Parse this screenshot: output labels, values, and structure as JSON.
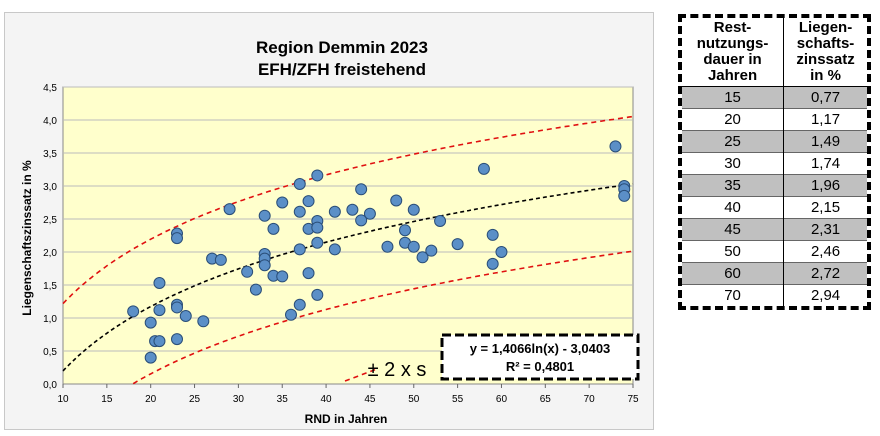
{
  "chart_data": {
    "type": "scatter",
    "title": "Region Demmin 2023",
    "subtitle": "EFH/ZFH freistehend",
    "xlabel": "RND in Jahren",
    "ylabel": "Liegenschaftszinssatz in %",
    "xlim": [
      10,
      75
    ],
    "ylim": [
      0,
      4.5
    ],
    "xticks": [
      10,
      15,
      20,
      25,
      30,
      35,
      40,
      45,
      50,
      55,
      60,
      65,
      70,
      75
    ],
    "yticks": [
      "0,0",
      "0,5",
      "1,0",
      "1,5",
      "2,0",
      "2,5",
      "3,0",
      "3,5",
      "4,0",
      "4,5"
    ],
    "xtick_values": [
      10,
      15,
      20,
      25,
      30,
      35,
      40,
      45,
      50,
      55,
      60,
      65,
      70,
      75
    ],
    "ytick_values": [
      0,
      0.5,
      1.0,
      1.5,
      2.0,
      2.5,
      3.0,
      3.5,
      4.0,
      4.5
    ],
    "grid": true,
    "points": [
      [
        18,
        1.1
      ],
      [
        20,
        0.93
      ],
      [
        20,
        0.4
      ],
      [
        20.5,
        0.65
      ],
      [
        21,
        1.53
      ],
      [
        21,
        1.12
      ],
      [
        21,
        0.65
      ],
      [
        23,
        2.28
      ],
      [
        23,
        2.21
      ],
      [
        23,
        1.2
      ],
      [
        23,
        1.16
      ],
      [
        23,
        0.68
      ],
      [
        24,
        1.03
      ],
      [
        26,
        0.95
      ],
      [
        27,
        1.9
      ],
      [
        28,
        1.88
      ],
      [
        29,
        2.65
      ],
      [
        31,
        1.7
      ],
      [
        32,
        1.43
      ],
      [
        33,
        2.55
      ],
      [
        33,
        1.97
      ],
      [
        33,
        1.9
      ],
      [
        33,
        1.8
      ],
      [
        34,
        2.35
      ],
      [
        34,
        1.64
      ],
      [
        35,
        2.75
      ],
      [
        35,
        1.63
      ],
      [
        36,
        1.05
      ],
      [
        37,
        3.03
      ],
      [
        37,
        2.61
      ],
      [
        37,
        2.04
      ],
      [
        37,
        1.2
      ],
      [
        38,
        2.77
      ],
      [
        38,
        2.35
      ],
      [
        38,
        1.68
      ],
      [
        39,
        3.16
      ],
      [
        39,
        2.47
      ],
      [
        39,
        2.37
      ],
      [
        39,
        2.14
      ],
      [
        39,
        1.35
      ],
      [
        41,
        2.61
      ],
      [
        41,
        2.04
      ],
      [
        43,
        2.64
      ],
      [
        44,
        2.95
      ],
      [
        44,
        2.48
      ],
      [
        45,
        2.58
      ],
      [
        47,
        2.08
      ],
      [
        48,
        2.78
      ],
      [
        49,
        2.33
      ],
      [
        49,
        2.14
      ],
      [
        50,
        2.64
      ],
      [
        50,
        2.08
      ],
      [
        51,
        1.92
      ],
      [
        52,
        2.02
      ],
      [
        53,
        2.47
      ],
      [
        55,
        2.12
      ],
      [
        58,
        3.26
      ],
      [
        59,
        2.26
      ],
      [
        59,
        1.82
      ],
      [
        60,
        2.0
      ],
      [
        73,
        3.6
      ],
      [
        74,
        3.0
      ],
      [
        74,
        2.95
      ],
      [
        74,
        2.85
      ]
    ],
    "trendline": {
      "a": 1.4066,
      "b": -3.0403,
      "type": "log"
    },
    "band": {
      "offset": 1.02
    },
    "equation": "y = 1,4066ln(x) - 3,0403",
    "r2": "R² = 0,4801",
    "band_label": "± 2 x s",
    "colors": {
      "plot_bg": "#ffffcc",
      "point_fill": "#5b8fc7",
      "point_stroke": "#2a4e78",
      "band": "#e01010",
      "trend": "#000000"
    }
  },
  "table": {
    "headers": [
      "Rest-nutzungs-dauer in Jahren",
      "Liegen-schafts-zinssatz in %"
    ],
    "header_lines": [
      [
        "Rest-",
        "nutzungs-",
        "dauer in",
        "Jahren"
      ],
      [
        "Liegen-",
        "schafts-",
        "zinssatz",
        "in %"
      ]
    ],
    "rows": [
      [
        "15",
        "0,77"
      ],
      [
        "20",
        "1,17"
      ],
      [
        "25",
        "1,49"
      ],
      [
        "30",
        "1,74"
      ],
      [
        "35",
        "1,96"
      ],
      [
        "40",
        "2,15"
      ],
      [
        "45",
        "2,31"
      ],
      [
        "50",
        "2,46"
      ],
      [
        "60",
        "2,72"
      ],
      [
        "70",
        "2,94"
      ]
    ]
  }
}
